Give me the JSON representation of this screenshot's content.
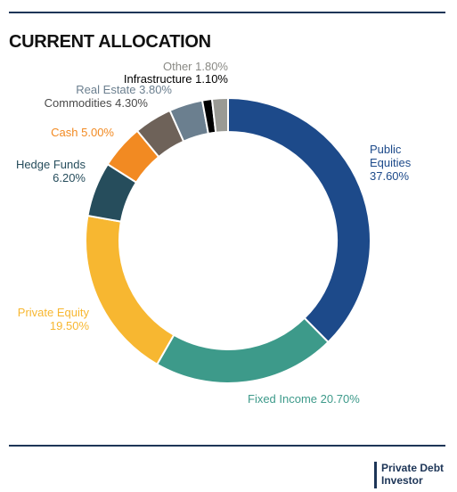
{
  "chart_data": {
    "type": "donut",
    "title": "CURRENT ALLOCATION",
    "categories": [
      "Public Equities",
      "Fixed Income",
      "Private Equity",
      "Hedge Funds",
      "Cash",
      "Commodities",
      "Real Estate",
      "Infrastructure",
      "Other"
    ],
    "values": [
      37.6,
      20.7,
      19.5,
      6.2,
      5.0,
      4.3,
      3.8,
      1.1,
      1.8
    ],
    "value_labels": [
      "37.60%",
      "20.70%",
      "19.50%",
      "6.20%",
      "5.00%",
      "4.30%",
      "3.80%",
      "1.10%",
      "1.80%"
    ],
    "colors": [
      "#1d4a8a",
      "#3d9a8a",
      "#f7b731",
      "#264d5c",
      "#f28a22",
      "#6e6259",
      "#6b7f8f",
      "#000000",
      "#9a9a94"
    ],
    "label_colors": [
      "#1d4a8a",
      "#3d9a8a",
      "#f7b731",
      "#264d5c",
      "#f28a22",
      "#4a4a4a",
      "#6b7f8f",
      "#000000",
      "#8a8a85"
    ],
    "source": "Private Debt Investor"
  }
}
